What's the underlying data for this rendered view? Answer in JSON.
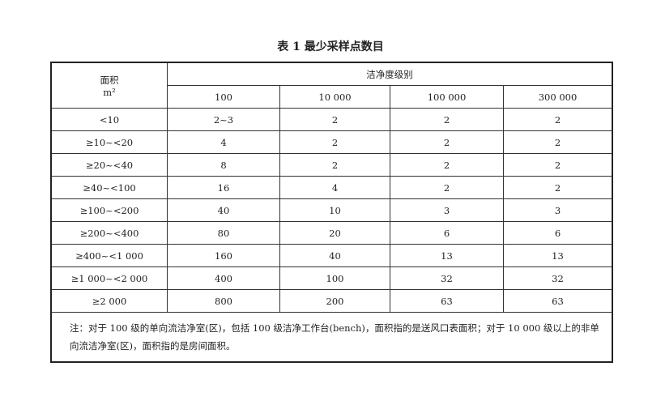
{
  "title": "表 1  最少采样点数目",
  "header": {
    "area_label": "面积",
    "area_unit": "m²",
    "class_label": "洁净度级别",
    "classes": [
      "100",
      "10 000",
      "100 000",
      "300 000"
    ]
  },
  "rows": [
    {
      "area": "<10",
      "values": [
        "2~3",
        "2",
        "2",
        "2"
      ]
    },
    {
      "area": "≥10~<20",
      "values": [
        "4",
        "2",
        "2",
        "2"
      ]
    },
    {
      "area": "≥20~<40",
      "values": [
        "8",
        "2",
        "2",
        "2"
      ]
    },
    {
      "area": "≥40~<100",
      "values": [
        "16",
        "4",
        "2",
        "2"
      ]
    },
    {
      "area": "≥100~<200",
      "values": [
        "40",
        "10",
        "3",
        "3"
      ]
    },
    {
      "area": "≥200~<400",
      "values": [
        "80",
        "20",
        "6",
        "6"
      ]
    },
    {
      "area": "≥400~<1 000",
      "values": [
        "160",
        "40",
        "13",
        "13"
      ]
    },
    {
      "area": "≥1 000~<2 000",
      "values": [
        "400",
        "100",
        "32",
        "32"
      ]
    },
    {
      "area": "≥2 000",
      "values": [
        "800",
        "200",
        "63",
        "63"
      ]
    }
  ],
  "note": "注：对于 100 级的单向流洁净室(区)，包括 100 级洁净工作台(bench)，面积指的是送风口表面积；对于 10 000 级以上的非单向流洁净室(区)，面积指的是房间面积。"
}
